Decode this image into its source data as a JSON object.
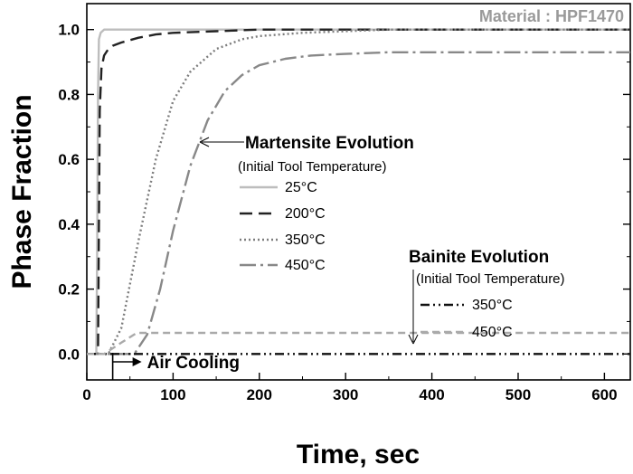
{
  "chart_data": {
    "type": "line",
    "title": "Material : HPF1470",
    "xlabel": "Time, sec",
    "ylabel": "Phase Fraction",
    "xlim": [
      0,
      630
    ],
    "ylim": [
      -0.08,
      1.08
    ],
    "xticks": [
      0,
      100,
      200,
      300,
      400,
      500,
      600
    ],
    "yticks": [
      0.0,
      0.2,
      0.4,
      0.6,
      0.8,
      1.0
    ],
    "xtick_labels": [
      "0",
      "100",
      "200",
      "300",
      "400",
      "500",
      "600"
    ],
    "ytick_labels": [
      "0.0",
      "0.2",
      "0.4",
      "0.6",
      "0.8",
      "1.0"
    ],
    "grid": false,
    "annotations": {
      "martensite_title": "Martensite Evolution",
      "martensite_sub": "(Initial Tool Temperature)",
      "bainite_title": "Bainite Evolution",
      "bainite_sub": "(Initial Tool Temperature)",
      "air_cooling": "Air Cooling",
      "air_cooling_x": 30
    },
    "series": [
      {
        "group": "martensite",
        "label": "25°C",
        "color": "#bdbdbd",
        "dash": "",
        "x": [
          0,
          11,
          12,
          13,
          14,
          16,
          20,
          30,
          630
        ],
        "y": [
          0,
          0,
          0.3,
          0.8,
          0.97,
          0.99,
          1.0,
          1.0,
          1.0
        ]
      },
      {
        "group": "martensite",
        "label": "200°C",
        "color": "#222222",
        "dash": "14,7",
        "x": [
          0,
          13,
          14,
          15,
          17,
          20,
          25,
          30,
          40,
          60,
          80,
          100,
          150,
          200,
          300,
          630
        ],
        "y": [
          0,
          0,
          0.4,
          0.75,
          0.88,
          0.92,
          0.94,
          0.95,
          0.96,
          0.975,
          0.985,
          0.99,
          0.995,
          1.0,
          1.0,
          1.0
        ]
      },
      {
        "group": "martensite",
        "label": "350°C",
        "color": "#7d7d7d",
        "dash": "2,3",
        "x": [
          0,
          25,
          40,
          60,
          80,
          100,
          120,
          150,
          180,
          200,
          250,
          300,
          350,
          400,
          500,
          630
        ],
        "y": [
          0,
          0,
          0.08,
          0.35,
          0.6,
          0.78,
          0.87,
          0.94,
          0.97,
          0.98,
          0.99,
          0.995,
          1.0,
          1.0,
          1.0,
          1.0
        ]
      },
      {
        "group": "martensite",
        "label": "450°C",
        "color": "#888888",
        "dash": "18,5,3,5",
        "x": [
          0,
          55,
          70,
          85,
          100,
          120,
          140,
          160,
          180,
          200,
          230,
          260,
          300,
          350,
          400,
          500,
          630
        ],
        "y": [
          0,
          0,
          0.06,
          0.2,
          0.38,
          0.58,
          0.72,
          0.81,
          0.86,
          0.89,
          0.91,
          0.92,
          0.925,
          0.93,
          0.93,
          0.93,
          0.93
        ]
      },
      {
        "group": "bainite",
        "label": "350°C",
        "color": "#111111",
        "dash": "10,4,2,4,2,4",
        "x": [
          0,
          630
        ],
        "y": [
          0.0,
          0.0
        ]
      },
      {
        "group": "bainite",
        "label": "450°C",
        "color": "#aaaaaa",
        "dash": "8,5",
        "x": [
          0,
          20,
          40,
          58,
          630
        ],
        "y": [
          0,
          0,
          0.035,
          0.065,
          0.065
        ]
      }
    ]
  }
}
